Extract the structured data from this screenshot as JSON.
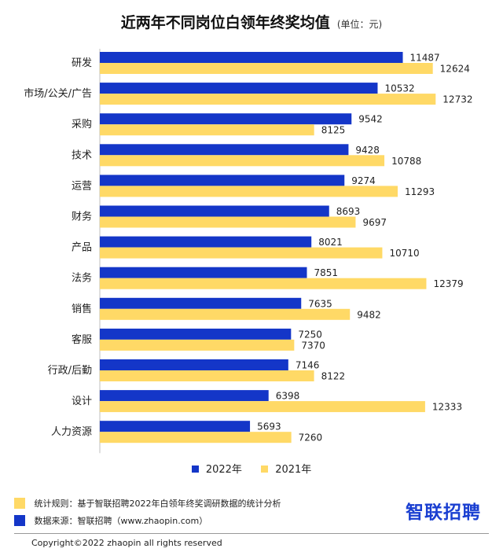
{
  "title": "近两年不同岗位白领年终奖均值",
  "unit_label": "(单位：元)",
  "colors": {
    "series_2022": "#1436c8",
    "series_2021": "#ffd966",
    "brand": "#1a3fd1"
  },
  "chart_data": {
    "type": "bar",
    "orientation": "horizontal",
    "title": "近两年不同岗位白领年终奖均值",
    "unit": "元",
    "categories": [
      "研发",
      "市场/公关/广告",
      "采购",
      "技术",
      "运营",
      "财务",
      "产品",
      "法务",
      "销售",
      "客服",
      "行政/后勤",
      "设计",
      "人力资源"
    ],
    "series": [
      {
        "name": "2022年",
        "values": [
          11487,
          10532,
          9542,
          9428,
          9274,
          8693,
          8021,
          7851,
          7635,
          7250,
          7146,
          6398,
          5693
        ]
      },
      {
        "name": "2021年",
        "values": [
          12624,
          12732,
          8125,
          10788,
          11293,
          9697,
          10710,
          12379,
          9482,
          7370,
          8122,
          12333,
          7260
        ]
      }
    ],
    "xlim": [
      0,
      14600
    ],
    "legend_position": "bottom"
  },
  "notes": {
    "rule": "统计规则：基于智联招聘2022年白领年终奖调研数据的统计分析",
    "source": "数据来源：智联招聘（www.zhaopin.com）"
  },
  "brand": "智联招聘",
  "copyright": "Copyright©2022 zhaopin all rights reserved"
}
